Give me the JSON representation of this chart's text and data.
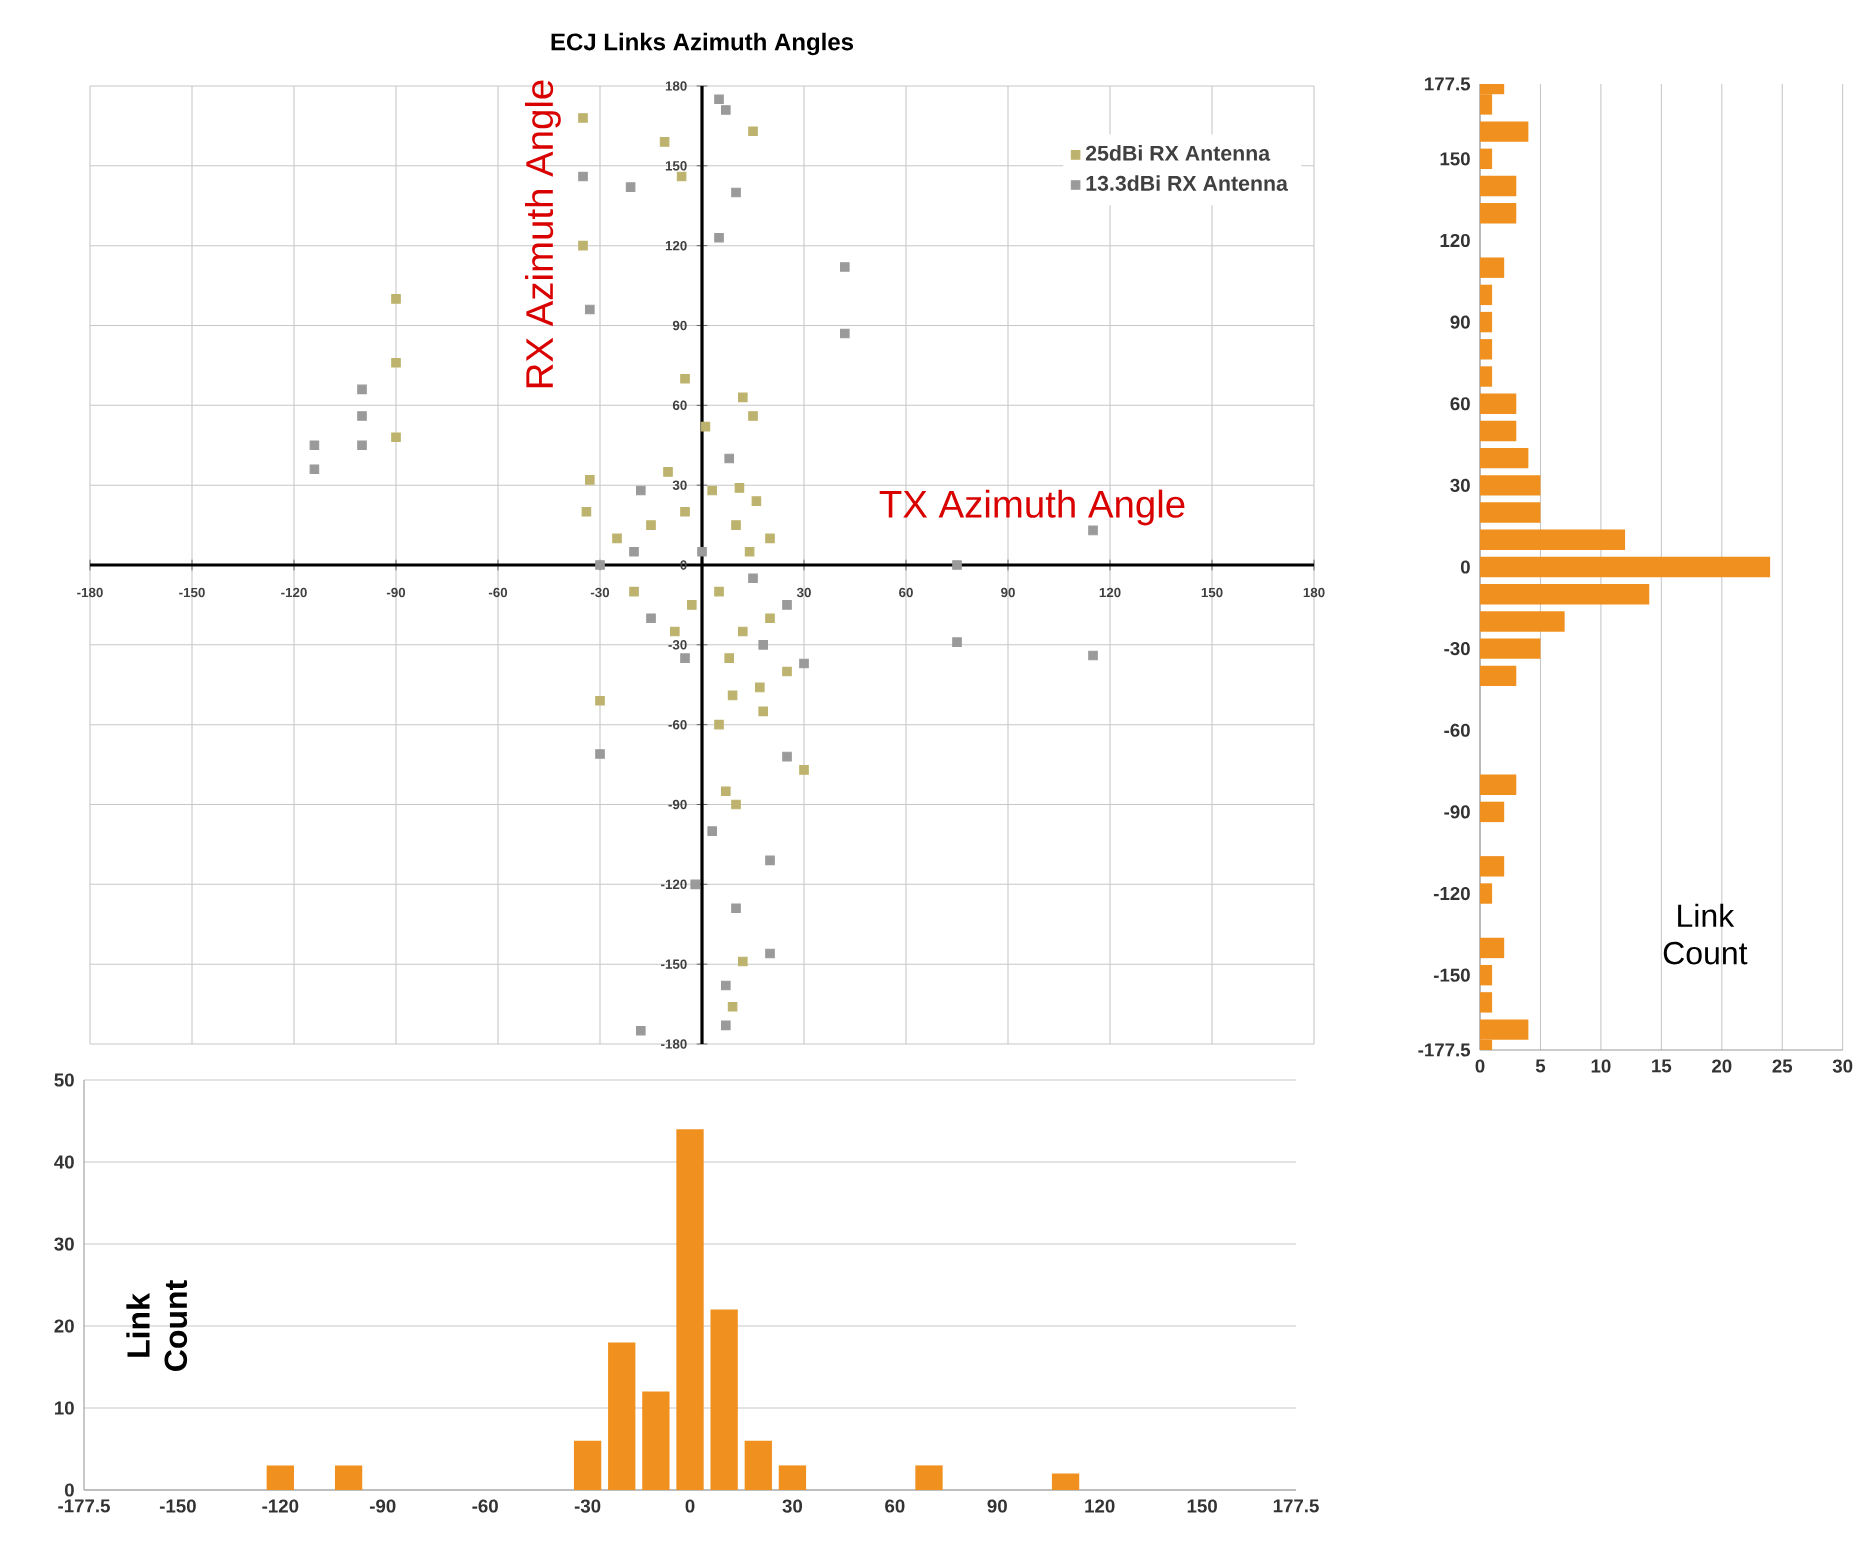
{
  "chart_data": [
    {
      "type": "scatter",
      "title": "ECJ Links Azimuth Angles",
      "xlabel": "TX Azimuth Angle",
      "ylabel": "RX Azimuth Angle",
      "xlim": [
        -180,
        180
      ],
      "ylim": [
        -180,
        180
      ],
      "xticks": [
        -180,
        -150,
        -120,
        -90,
        -60,
        -30,
        {
          "value": 0,
          "label": null
        },
        30,
        60,
        90,
        120,
        150,
        180
      ],
      "yticks": [
        -180,
        -150,
        -120,
        -90,
        -60,
        -30,
        0,
        30,
        60,
        90,
        120,
        150,
        180
      ],
      "grid": true,
      "legend": "top right",
      "marker": "square",
      "series": [
        {
          "name": "25dBi RX Antenna",
          "color": "#bdb36e",
          "x": [
            -90,
            -90,
            -90,
            -35,
            -35,
            -30,
            -33,
            -34,
            15,
            -11,
            -6,
            -5,
            12,
            15,
            1,
            11,
            16,
            25,
            17,
            9,
            30,
            7,
            10,
            12,
            9,
            -25,
            -15,
            -5,
            -20,
            -8,
            5,
            10,
            20,
            12,
            3,
            -10,
            20,
            14,
            -3,
            8,
            18,
            5
          ],
          "values": [
            100,
            76,
            48,
            168,
            120,
            -51,
            32,
            20,
            163,
            159,
            146,
            70,
            63,
            56,
            52,
            29,
            24,
            -40,
            -46,
            -49,
            -77,
            -85,
            -90,
            -149,
            -166,
            10,
            15,
            20,
            -10,
            -25,
            -10,
            15,
            10,
            -25,
            28,
            35,
            -20,
            5,
            -15,
            -35,
            -55,
            -60
          ]
        },
        {
          "name": "13.3dBi RX Antenna",
          "color": "#9a9a9a",
          "x": [
            -100,
            -100,
            -100,
            -114,
            -114,
            -35,
            -33,
            -30,
            -18,
            -21,
            5,
            7,
            10,
            5,
            42,
            42,
            115,
            75,
            75,
            115,
            30,
            25,
            20,
            10,
            20,
            7,
            7,
            -20,
            -30,
            -15,
            0,
            15,
            25,
            18,
            8,
            -18,
            -5,
            3,
            -2
          ],
          "values": [
            66,
            56,
            45,
            45,
            36,
            146,
            96,
            -71,
            -175,
            142,
            175,
            171,
            140,
            123,
            112,
            87,
            13,
            0,
            -29,
            -34,
            -37,
            -72,
            -111,
            -129,
            -146,
            -158,
            -173,
            5,
            0,
            -20,
            5,
            -5,
            -15,
            -30,
            40,
            28,
            -35,
            -100,
            -120
          ]
        }
      ]
    },
    {
      "type": "bar",
      "orientation": "horizontal",
      "xlabel": "Link Count",
      "color": "#f0901e",
      "x": [
        -177.5,
        -170,
        -160,
        -150,
        -140,
        -120,
        -110,
        -90,
        -80,
        -40,
        -30,
        -20,
        -10,
        0,
        10,
        20,
        30,
        40,
        50,
        60,
        70,
        80,
        90,
        100,
        110,
        130,
        140,
        150,
        160,
        170,
        177.5
      ],
      "values": [
        1,
        4,
        1,
        1,
        2,
        1,
        2,
        2,
        3,
        3,
        5,
        7,
        14,
        24,
        12,
        5,
        5,
        4,
        3,
        3,
        1,
        1,
        1,
        1,
        2,
        3,
        3,
        1,
        4,
        1,
        2
      ],
      "xlim": [
        0,
        30
      ],
      "xticks": [
        0,
        5,
        10,
        15,
        20,
        25,
        30
      ],
      "ylim": [
        -177.5,
        177.5
      ],
      "yticks": [
        -177.5,
        -150,
        -120,
        -90,
        -60,
        -30,
        0,
        30,
        60,
        90,
        120,
        150,
        177.5
      ],
      "grid": "x"
    },
    {
      "type": "bar",
      "ylabel": "Link Count",
      "color": "#f0901e",
      "x": [
        -120,
        -100,
        -30,
        -20,
        -10,
        0,
        10,
        20,
        30,
        70,
        110
      ],
      "values": [
        3,
        3,
        6,
        18,
        12,
        44,
        22,
        6,
        3,
        3,
        2
      ],
      "xlim": [
        -177.5,
        177.5
      ],
      "xticks": [
        -177.5,
        -150,
        -120,
        -90,
        -60,
        -30,
        0,
        30,
        60,
        90,
        120,
        150,
        177.5
      ],
      "ylim": [
        0,
        50
      ],
      "yticks": [
        0,
        10,
        20,
        30,
        40,
        50
      ],
      "grid": "y"
    }
  ]
}
